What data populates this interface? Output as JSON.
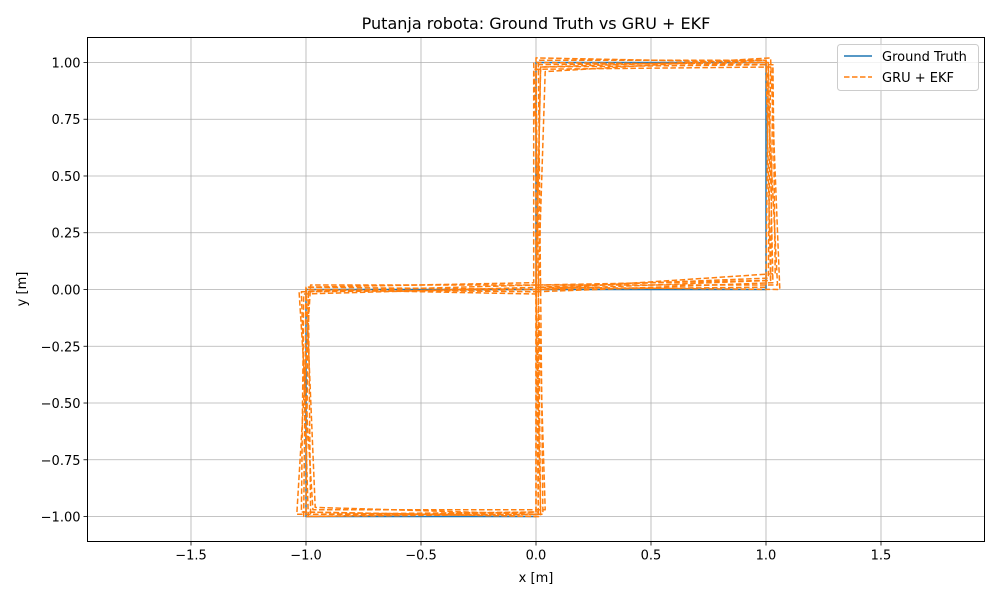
{
  "chart_data": {
    "type": "line",
    "title": "Putanja robota: Ground Truth vs GRU + EKF",
    "xlabel": "x [m]",
    "ylabel": "y [m]",
    "xlim": [
      -1.95,
      1.95
    ],
    "ylim": [
      -1.11,
      1.11
    ],
    "xticks": [
      -1.5,
      -1.0,
      -0.5,
      0.0,
      0.5,
      1.0,
      1.5
    ],
    "xtick_labels": [
      "−1.5",
      "−1.0",
      "−0.5",
      "0.0",
      "0.5",
      "1.0",
      "1.5"
    ],
    "yticks": [
      -1.0,
      -0.75,
      -0.5,
      -0.25,
      0.0,
      0.25,
      0.5,
      0.75,
      1.0
    ],
    "ytick_labels": [
      "−1.00",
      "−0.75",
      "−0.50",
      "−0.25",
      "0.00",
      "0.25",
      "0.50",
      "0.75",
      "1.00"
    ],
    "grid": true,
    "legend_position": "top-right",
    "series": [
      {
        "name": "Ground Truth",
        "color": "#1f77b4",
        "style": "solid",
        "x": [
          0,
          1,
          1,
          0,
          0,
          -1,
          -1,
          0
        ],
        "y": [
          0,
          0,
          1,
          1,
          0,
          0,
          -1,
          -1
        ]
      },
      {
        "name": "GRU + EKF",
        "color": "#ff7f0e",
        "style": "dashed",
        "loops": [
          {
            "x": [
              0.0,
              1.0,
              1.01,
              0.0,
              0.01,
              -1.0,
              -1.01,
              0.0,
              0.0
            ],
            "y": [
              0.0,
              0.01,
              1.0,
              0.99,
              0.0,
              0.01,
              -1.0,
              -0.99,
              0.0
            ]
          },
          {
            "x": [
              0.01,
              1.02,
              1.0,
              0.02,
              0.0,
              -0.99,
              -0.98,
              0.01,
              0.01
            ],
            "y": [
              0.02,
              0.04,
              1.01,
              0.98,
              -0.02,
              0.0,
              -0.99,
              -0.98,
              0.02
            ]
          },
          {
            "x": [
              0.0,
              1.04,
              1.03,
              -0.01,
              0.02,
              -1.01,
              -1.02,
              0.02,
              0.0
            ],
            "y": [
              0.0,
              0.07,
              0.99,
              1.0,
              0.01,
              -0.02,
              -0.98,
              -1.0,
              0.0
            ]
          },
          {
            "x": [
              0.02,
              1.06,
              1.02,
              0.04,
              0.01,
              -0.98,
              -1.04,
              0.03,
              0.02
            ],
            "y": [
              0.01,
              0.0,
              1.02,
              0.96,
              0.02,
              0.02,
              -0.99,
              -0.99,
              0.01
            ]
          },
          {
            "x": [
              0.0,
              1.03,
              1.01,
              0.0,
              0.0,
              -1.02,
              -0.99,
              0.0,
              0.0
            ],
            "y": [
              -0.01,
              0.03,
              1.0,
              1.02,
              0.0,
              -0.01,
              -1.0,
              -0.98,
              -0.01
            ]
          },
          {
            "x": [
              0.01,
              1.01,
              1.02,
              -0.01,
              -0.01,
              -1.0,
              -0.96,
              0.02,
              0.01
            ],
            "y": [
              0.01,
              0.05,
              0.98,
              0.97,
              0.03,
              0.01,
              -0.96,
              -0.99,
              0.01
            ]
          },
          {
            "x": [
              0.0,
              1.05,
              1.0,
              0.01,
              0.02,
              -0.99,
              -1.0,
              0.01,
              0.0
            ],
            "y": [
              0.02,
              0.02,
              1.01,
              1.01,
              -0.01,
              0.0,
              -0.98,
              -1.0,
              0.02
            ]
          },
          {
            "x": [
              0.01,
              1.02,
              1.03,
              0.02,
              0.0,
              -1.03,
              -0.97,
              0.04,
              0.01
            ],
            "y": [
              0.0,
              0.04,
              0.99,
              0.98,
              0.02,
              -0.01,
              -0.97,
              -0.97,
              0.0
            ]
          }
        ]
      }
    ]
  }
}
